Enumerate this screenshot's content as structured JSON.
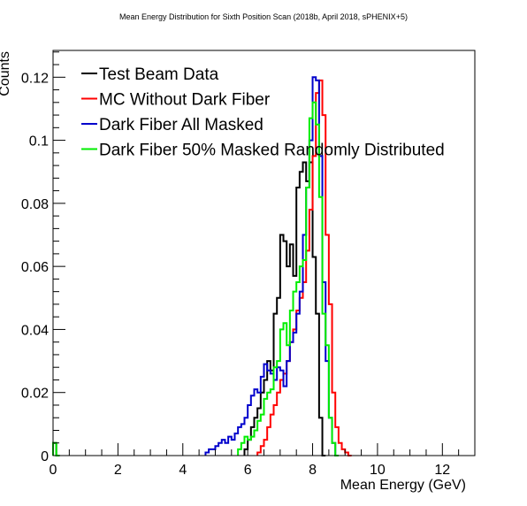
{
  "chart_data": {
    "type": "line",
    "title": "Mean Energy Distribution for Sixth Position Scan (2018b, April 2018, sPHENIX+5)",
    "xlabel": "Mean Energy (GeV)",
    "ylabel": "Counts",
    "xlim": [
      0,
      13
    ],
    "ylim": [
      0,
      0.1285
    ],
    "x_ticks": [
      0,
      2,
      4,
      6,
      8,
      10,
      12
    ],
    "y_ticks": [
      0,
      0.02,
      0.04,
      0.06,
      0.08,
      0.1,
      0.12
    ],
    "x_tick_labels": [
      "0",
      "2",
      "4",
      "6",
      "8",
      "10",
      "12"
    ],
    "y_tick_labels": [
      "0",
      "0.02",
      "0.04",
      "0.06",
      "0.08",
      "0.1",
      "0.12"
    ],
    "bin_width": 0.1,
    "grid": false,
    "legend_position": "top-left",
    "series": [
      {
        "name": "Test Beam Data",
        "color": "#000000",
        "bins": [
          [
            0.0,
            0.004
          ],
          [
            0.1,
            0.0
          ],
          [
            5.9,
            0.002
          ],
          [
            6.0,
            0.005
          ],
          [
            6.1,
            0.009
          ],
          [
            6.2,
            0.012
          ],
          [
            6.3,
            0.015
          ],
          [
            6.4,
            0.02
          ],
          [
            6.5,
            0.024
          ],
          [
            6.6,
            0.03
          ],
          [
            6.7,
            0.027
          ],
          [
            6.8,
            0.045
          ],
          [
            6.9,
            0.05
          ],
          [
            7.0,
            0.07
          ],
          [
            7.1,
            0.068
          ],
          [
            7.2,
            0.06
          ],
          [
            7.3,
            0.067
          ],
          [
            7.4,
            0.057
          ],
          [
            7.5,
            0.085
          ],
          [
            7.6,
            0.09
          ],
          [
            7.7,
            0.093
          ],
          [
            7.8,
            0.087
          ],
          [
            7.9,
            0.093
          ],
          [
            8.0,
            0.063
          ],
          [
            8.1,
            0.045
          ],
          [
            8.2,
            0.012
          ],
          [
            8.3,
            0.0
          ]
        ]
      },
      {
        "name": "MC Without Dark Fiber",
        "color": "#ff0000",
        "bins": [
          [
            6.3,
            0.001
          ],
          [
            6.4,
            0.003
          ],
          [
            6.5,
            0.005
          ],
          [
            6.6,
            0.009
          ],
          [
            6.7,
            0.013
          ],
          [
            6.8,
            0.016
          ],
          [
            6.9,
            0.02
          ],
          [
            7.0,
            0.024
          ],
          [
            7.1,
            0.026
          ],
          [
            7.2,
            0.03
          ],
          [
            7.3,
            0.036
          ],
          [
            7.4,
            0.04
          ],
          [
            7.5,
            0.046
          ],
          [
            7.6,
            0.05
          ],
          [
            7.7,
            0.055
          ],
          [
            7.8,
            0.065
          ],
          [
            7.9,
            0.078
          ],
          [
            8.0,
            0.095
          ],
          [
            8.1,
            0.115
          ],
          [
            8.2,
            0.119
          ],
          [
            8.3,
            0.108
          ],
          [
            8.4,
            0.07
          ],
          [
            8.5,
            0.048
          ],
          [
            8.6,
            0.02
          ],
          [
            8.7,
            0.009
          ],
          [
            8.8,
            0.004
          ],
          [
            8.9,
            0.002
          ],
          [
            9.0,
            0.001
          ],
          [
            9.1,
            0.0
          ]
        ]
      },
      {
        "name": "Dark Fiber All Masked",
        "color": "#0000cc",
        "bins": [
          [
            4.7,
            0.001
          ],
          [
            4.8,
            0.002
          ],
          [
            4.9,
            0.002
          ],
          [
            5.0,
            0.003
          ],
          [
            5.1,
            0.004
          ],
          [
            5.2,
            0.005
          ],
          [
            5.3,
            0.004
          ],
          [
            5.4,
            0.006
          ],
          [
            5.5,
            0.005
          ],
          [
            5.6,
            0.007
          ],
          [
            5.7,
            0.009
          ],
          [
            5.8,
            0.01
          ],
          [
            5.9,
            0.012
          ],
          [
            6.0,
            0.016
          ],
          [
            6.1,
            0.019
          ],
          [
            6.2,
            0.021
          ],
          [
            6.3,
            0.02
          ],
          [
            6.4,
            0.025
          ],
          [
            6.5,
            0.029
          ],
          [
            6.6,
            0.027
          ],
          [
            6.7,
            0.026
          ],
          [
            6.8,
            0.024
          ],
          [
            6.9,
            0.028
          ],
          [
            7.0,
            0.027
          ],
          [
            7.1,
            0.022
          ],
          [
            7.2,
            0.03
          ],
          [
            7.3,
            0.036
          ],
          [
            7.4,
            0.039
          ],
          [
            7.5,
            0.045
          ],
          [
            7.6,
            0.052
          ],
          [
            7.7,
            0.07
          ],
          [
            7.8,
            0.085
          ],
          [
            7.9,
            0.1
          ],
          [
            8.0,
            0.12
          ],
          [
            8.1,
            0.119
          ],
          [
            8.2,
            0.095
          ],
          [
            8.3,
            0.055
          ],
          [
            8.4,
            0.03
          ],
          [
            8.5,
            0.012
          ],
          [
            8.6,
            0.004
          ],
          [
            8.7,
            0.0
          ]
        ]
      },
      {
        "name": "Dark Fiber 50% Masked Randomly Distributed",
        "color": "#00ee00",
        "bins": [
          [
            0.0,
            0.004
          ],
          [
            0.1,
            0.0
          ],
          [
            5.7,
            0.002
          ],
          [
            5.8,
            0.004
          ],
          [
            5.9,
            0.006
          ],
          [
            6.0,
            0.005
          ],
          [
            6.1,
            0.006
          ],
          [
            6.2,
            0.008
          ],
          [
            6.3,
            0.011
          ],
          [
            6.4,
            0.013
          ],
          [
            6.5,
            0.018
          ],
          [
            6.6,
            0.02
          ],
          [
            6.7,
            0.021
          ],
          [
            6.8,
            0.028
          ],
          [
            6.9,
            0.03
          ],
          [
            7.0,
            0.04
          ],
          [
            7.1,
            0.042
          ],
          [
            7.2,
            0.035
          ],
          [
            7.3,
            0.046
          ],
          [
            7.4,
            0.052
          ],
          [
            7.5,
            0.055
          ],
          [
            7.6,
            0.06
          ],
          [
            7.7,
            0.062
          ],
          [
            7.8,
            0.085
          ],
          [
            7.9,
            0.107
          ],
          [
            8.0,
            0.112
          ],
          [
            8.1,
            0.105
          ],
          [
            8.2,
            0.082
          ],
          [
            8.3,
            0.045
          ],
          [
            8.4,
            0.035
          ],
          [
            8.5,
            0.012
          ],
          [
            8.6,
            0.004
          ],
          [
            8.7,
            0.0
          ]
        ]
      }
    ]
  }
}
